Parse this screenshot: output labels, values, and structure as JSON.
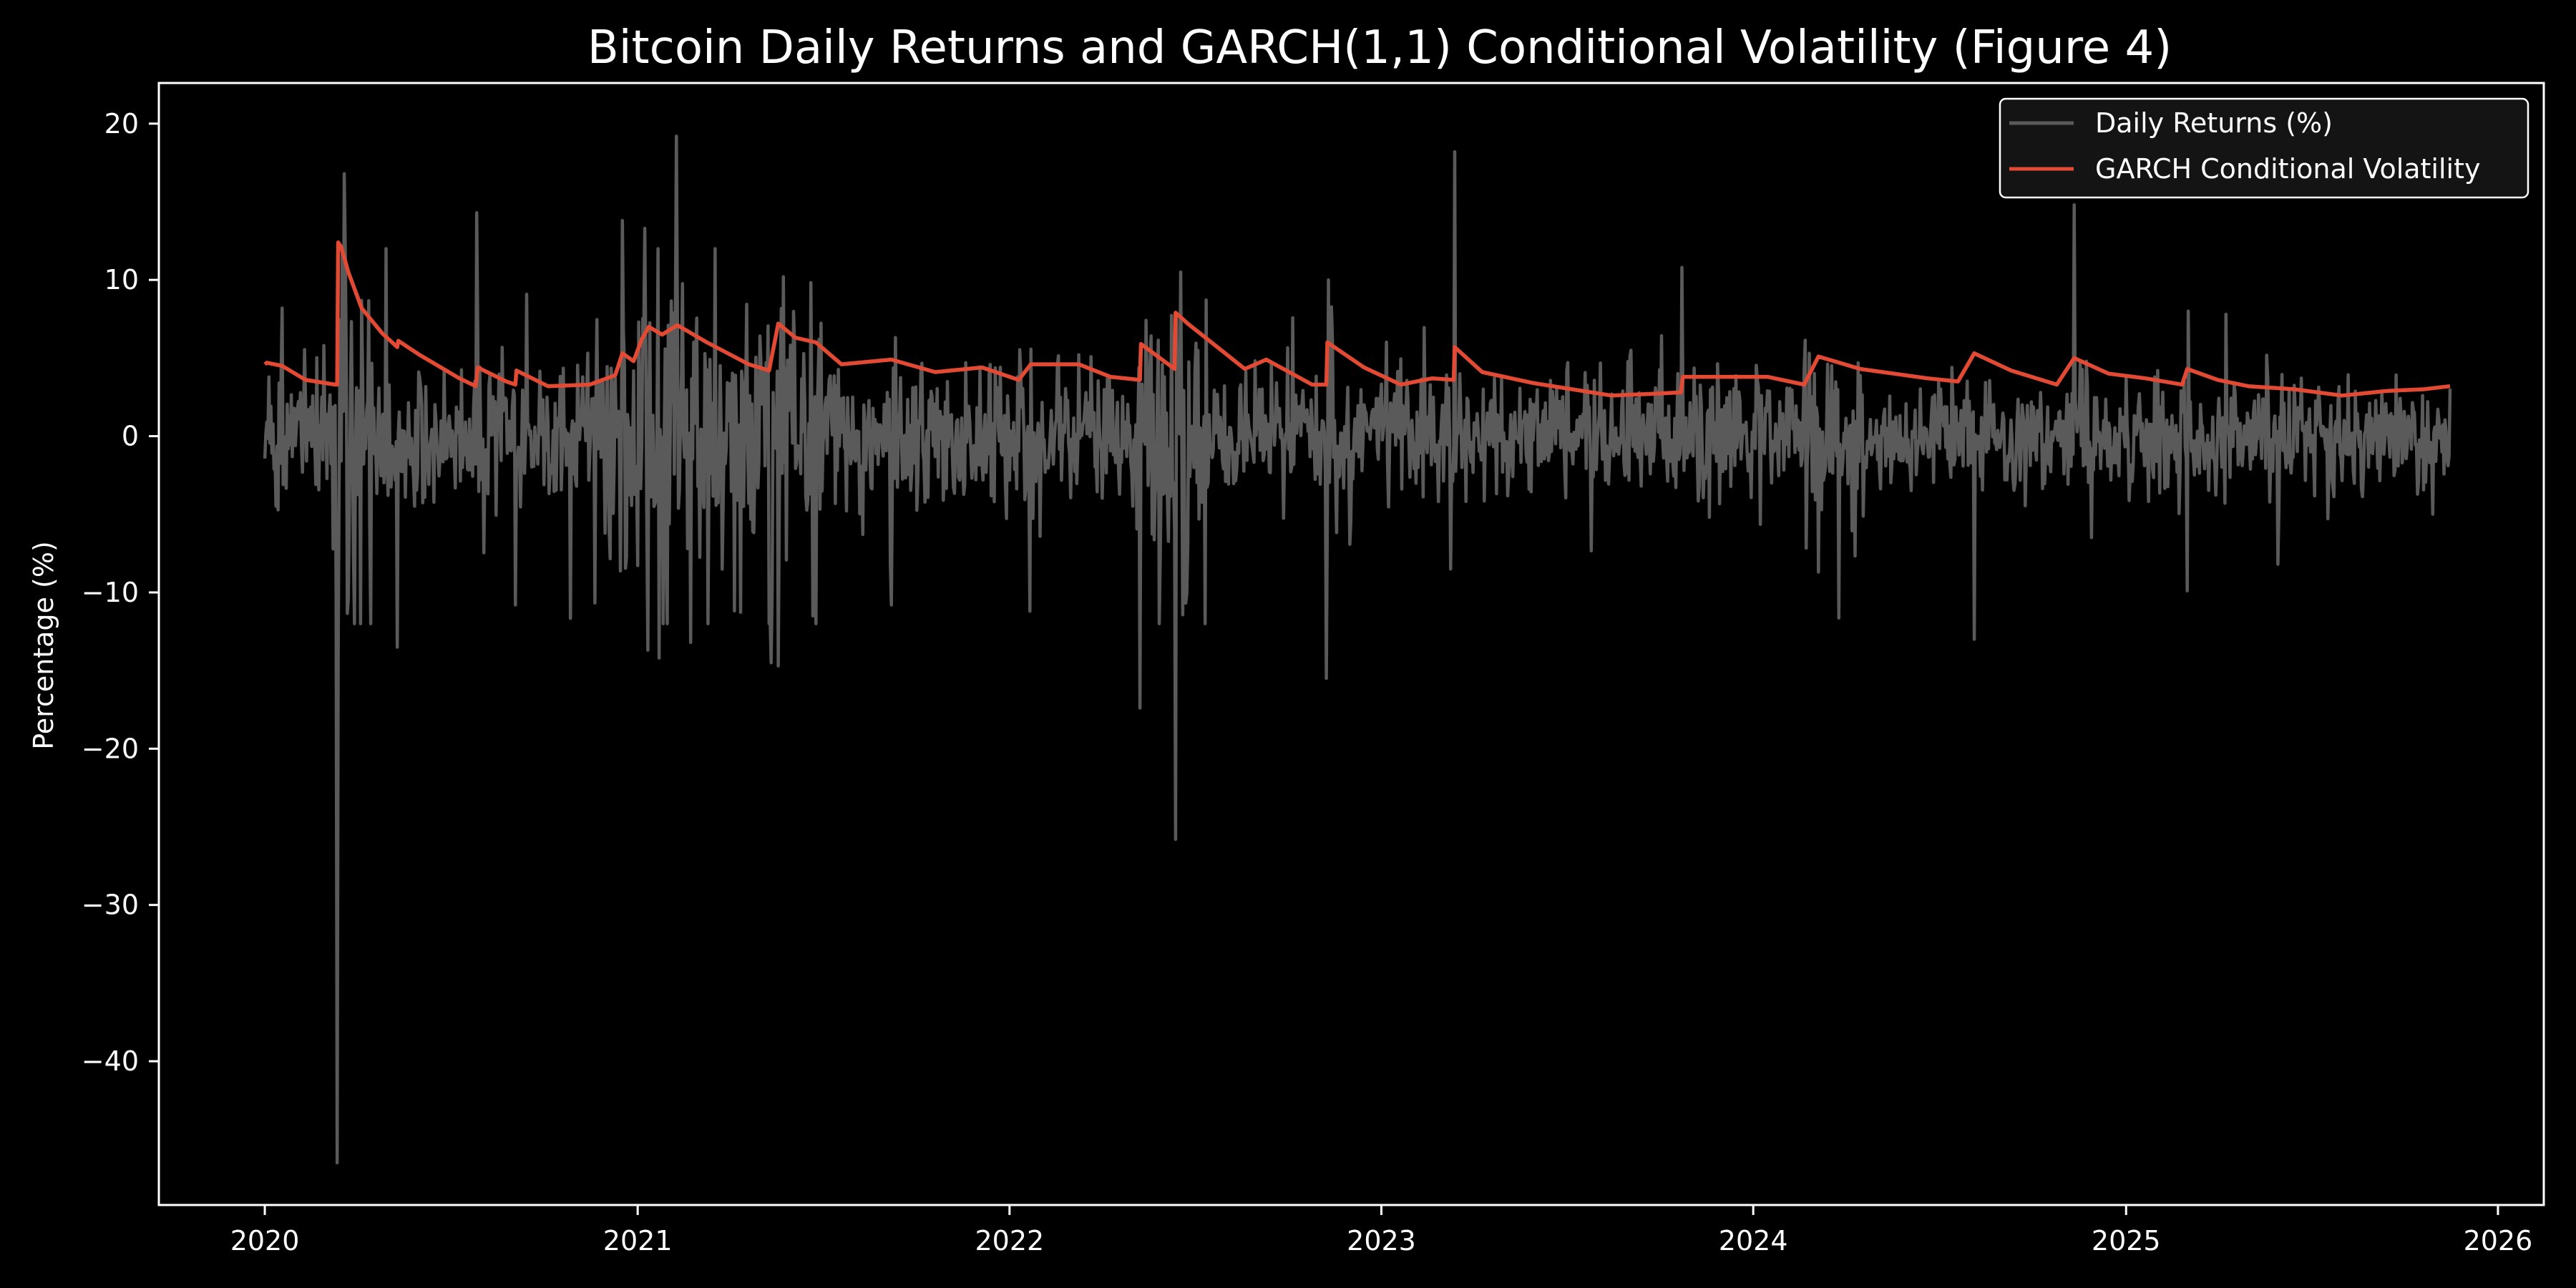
{
  "chart_data": {
    "type": "line",
    "title": "Bitcoin Daily Returns and GARCH(1,1) Conditional Volatility (Figure 4)",
    "xlabel": "",
    "ylabel": "Percentage (%)",
    "xlim": [
      "2019-09-19",
      "2026-02-15"
    ],
    "ylim": [
      -49.2,
      22.6
    ],
    "x_ticks": [
      "2020",
      "2021",
      "2022",
      "2023",
      "2024",
      "2025",
      "2026"
    ],
    "y_ticks": [
      "20",
      "10",
      "0",
      "−10",
      "−20",
      "−30",
      "−40"
    ],
    "y_tick_values": [
      20,
      10,
      0,
      -10,
      -20,
      -30,
      -40
    ],
    "grid": false,
    "legend": "top-right",
    "colors": {
      "background": "#000000",
      "returns": "#5a5a5a",
      "volatility": "#e24a33",
      "legend_bg": "#141414",
      "axes": "#ffffff"
    },
    "returns_generation": {
      "start": "2020-01-01",
      "end": "2025-11-15",
      "seed": 20200101,
      "base_scale": 0.72,
      "shocks": [
        [
          "2020-01-18",
          8.2
        ],
        [
          "2020-02-28",
          5.8
        ],
        [
          "2020-03-12",
          -46.5
        ],
        [
          "2020-03-13",
          -14.2
        ],
        [
          "2020-03-19",
          16.8
        ],
        [
          "2020-03-23",
          -10.4
        ],
        [
          "2020-04-29",
          12.0
        ],
        [
          "2020-05-10",
          -13.5
        ],
        [
          "2020-07-27",
          14.3
        ],
        [
          "2020-09-03",
          -10.8
        ],
        [
          "2020-12-17",
          13.8
        ],
        [
          "2021-01-08",
          13.3
        ],
        [
          "2021-01-11",
          -13.7
        ],
        [
          "2021-01-22",
          -14.2
        ],
        [
          "2021-02-08",
          19.2
        ],
        [
          "2021-02-22",
          -13.2
        ],
        [
          "2021-05-12",
          -14.5
        ],
        [
          "2021-05-19",
          -14.7
        ],
        [
          "2021-05-24",
          10.2
        ],
        [
          "2021-06-22",
          -11.5
        ],
        [
          "2021-09-07",
          -10.8
        ],
        [
          "2022-01-21",
          -11.2
        ],
        [
          "2022-05-09",
          -17.4
        ],
        [
          "2022-06-13",
          -25.8
        ],
        [
          "2022-06-18",
          10.5
        ],
        [
          "2022-11-08",
          -15.5
        ],
        [
          "2022-11-10",
          10.0
        ],
        [
          "2023-03-14",
          18.2
        ],
        [
          "2023-03-10",
          -8.5
        ],
        [
          "2023-10-23",
          10.8
        ],
        [
          "2024-03-05",
          -8.7
        ],
        [
          "2024-08-05",
          -13.0
        ],
        [
          "2024-11-11",
          14.8
        ],
        [
          "2025-03-02",
          -9.9
        ],
        [
          "2025-03-03",
          8.0
        ],
        [
          "2025-04-09",
          7.8
        ]
      ],
      "clusters": [
        [
          "2020-03-08",
          "2020-04-15",
          3.4
        ],
        [
          "2020-11-20",
          "2021-06-30",
          2.1
        ],
        [
          "2022-05-05",
          "2022-07-15",
          1.8
        ],
        [
          "2022-11-05",
          "2022-12-05",
          1.6
        ],
        [
          "2024-02-20",
          "2024-04-20",
          1.5
        ],
        [
          "2024-11-05",
          "2024-12-15",
          1.4
        ]
      ]
    },
    "series": [
      {
        "name": "Daily Returns (%)",
        "source": "returns_generation"
      },
      {
        "name": "GARCH Conditional Volatility",
        "points": [
          [
            "2020-01-01",
            4.6
          ],
          [
            "2020-01-03",
            4.7
          ],
          [
            "2020-01-18",
            4.5
          ],
          [
            "2020-02-10",
            3.6
          ],
          [
            "2020-03-10",
            3.3
          ],
          [
            "2020-03-12",
            3.3
          ],
          [
            "2020-03-13",
            12.4
          ],
          [
            "2020-03-16",
            12.1
          ],
          [
            "2020-03-23",
            10.5
          ],
          [
            "2020-04-05",
            8.2
          ],
          [
            "2020-04-25",
            6.6
          ],
          [
            "2020-05-10",
            5.7
          ],
          [
            "2020-05-11",
            6.1
          ],
          [
            "2020-06-01",
            5.2
          ],
          [
            "2020-07-10",
            3.7
          ],
          [
            "2020-07-26",
            3.2
          ],
          [
            "2020-07-28",
            4.4
          ],
          [
            "2020-08-25",
            3.5
          ],
          [
            "2020-09-03",
            3.3
          ],
          [
            "2020-09-04",
            4.2
          ],
          [
            "2020-10-05",
            3.2
          ],
          [
            "2020-11-15",
            3.3
          ],
          [
            "2020-12-10",
            3.9
          ],
          [
            "2020-12-17",
            5.3
          ],
          [
            "2020-12-28",
            4.8
          ],
          [
            "2021-01-05",
            6.2
          ],
          [
            "2021-01-12",
            7.0
          ],
          [
            "2021-01-25",
            6.5
          ],
          [
            "2021-02-09",
            7.1
          ],
          [
            "2021-03-10",
            6.0
          ],
          [
            "2021-04-20",
            4.6
          ],
          [
            "2021-05-10",
            4.2
          ],
          [
            "2021-05-19",
            7.2
          ],
          [
            "2021-06-05",
            6.3
          ],
          [
            "2021-06-25",
            6.0
          ],
          [
            "2021-07-20",
            4.6
          ],
          [
            "2021-09-07",
            4.9
          ],
          [
            "2021-10-20",
            4.1
          ],
          [
            "2021-12-05",
            4.4
          ],
          [
            "2022-01-10",
            3.6
          ],
          [
            "2022-01-22",
            4.6
          ],
          [
            "2022-03-10",
            4.6
          ],
          [
            "2022-04-10",
            3.8
          ],
          [
            "2022-05-09",
            3.6
          ],
          [
            "2022-05-10",
            5.9
          ],
          [
            "2022-06-12",
            4.3
          ],
          [
            "2022-06-13",
            7.9
          ],
          [
            "2022-06-25",
            7.2
          ],
          [
            "2022-08-20",
            4.3
          ],
          [
            "2022-09-10",
            4.9
          ],
          [
            "2022-10-25",
            3.3
          ],
          [
            "2022-11-08",
            3.3
          ],
          [
            "2022-11-09",
            6.0
          ],
          [
            "2022-12-15",
            4.4
          ],
          [
            "2023-01-20",
            3.3
          ],
          [
            "2023-02-20",
            3.7
          ],
          [
            "2023-03-13",
            3.6
          ],
          [
            "2023-03-14",
            5.7
          ],
          [
            "2023-04-10",
            4.1
          ],
          [
            "2023-05-30",
            3.4
          ],
          [
            "2023-08-15",
            2.6
          ],
          [
            "2023-09-20",
            2.7
          ],
          [
            "2023-10-22",
            2.8
          ],
          [
            "2023-10-24",
            3.8
          ],
          [
            "2023-12-10",
            3.8
          ],
          [
            "2024-01-15",
            3.8
          ],
          [
            "2024-02-20",
            3.3
          ],
          [
            "2024-03-05",
            5.1
          ],
          [
            "2024-04-15",
            4.3
          ],
          [
            "2024-06-20",
            3.7
          ],
          [
            "2024-07-20",
            3.5
          ],
          [
            "2024-08-05",
            5.3
          ],
          [
            "2024-09-10",
            4.2
          ],
          [
            "2024-10-25",
            3.3
          ],
          [
            "2024-11-11",
            5.0
          ],
          [
            "2024-12-15",
            4.0
          ],
          [
            "2025-01-20",
            3.7
          ],
          [
            "2025-02-25",
            3.3
          ],
          [
            "2025-03-02",
            4.3
          ],
          [
            "2025-04-01",
            3.6
          ],
          [
            "2025-05-01",
            3.2
          ],
          [
            "2025-06-15",
            3.0
          ],
          [
            "2025-08-01",
            2.6
          ],
          [
            "2025-09-15",
            2.9
          ],
          [
            "2025-10-20",
            3.0
          ],
          [
            "2025-11-15",
            3.2
          ]
        ]
      }
    ]
  }
}
